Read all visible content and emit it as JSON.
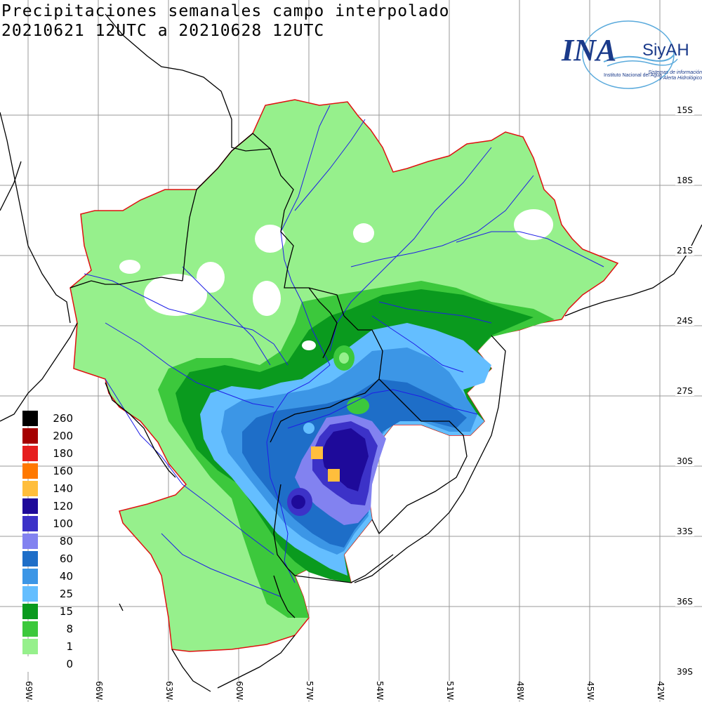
{
  "title": {
    "line1": "Precipitaciones semanales campo interpolado",
    "line2": "20210621 12UTC a 20210628 12UTC"
  },
  "logo": {
    "brand": "INA",
    "product": "SiyAH",
    "institute": "Instituto Nacional del Agua",
    "system_line1": "Sistemas de información",
    "system_line2": "y Alerta Hidrológico"
  },
  "legend": [
    {
      "label": "260",
      "color": "#000000"
    },
    {
      "label": "200",
      "color": "#a50000"
    },
    {
      "label": "180",
      "color": "#e61e1e"
    },
    {
      "label": "160",
      "color": "#ff7800"
    },
    {
      "label": "140",
      "color": "#ffbe3c"
    },
    {
      "label": "120",
      "color": "#1e0a9a"
    },
    {
      "label": "100",
      "color": "#3c32c8"
    },
    {
      "label": "80",
      "color": "#8282f0"
    },
    {
      "label": "60",
      "color": "#1e6ec8"
    },
    {
      "label": "40",
      "color": "#3c96e6"
    },
    {
      "label": "25",
      "color": "#64beff"
    },
    {
      "label": "15",
      "color": "#0a9a1e"
    },
    {
      "label": "8",
      "color": "#3cc83c"
    },
    {
      "label": "1",
      "color": "#96f08c"
    },
    {
      "label": "0",
      "color": "#ffffff"
    }
  ],
  "lat_labels": [
    "15S",
    "18S",
    "21S",
    "24S",
    "27S",
    "30S",
    "33S",
    "36S",
    "39S"
  ],
  "lon_labels": [
    "69W",
    "66W",
    "63W",
    "60W",
    "57W",
    "54W",
    "51W",
    "48W",
    "45W",
    "42W"
  ],
  "colors": {
    "basin_outline": "#e01010",
    "rivers": "#1e1ee6",
    "borders": "#000000",
    "grid": "#9a9a9a"
  }
}
